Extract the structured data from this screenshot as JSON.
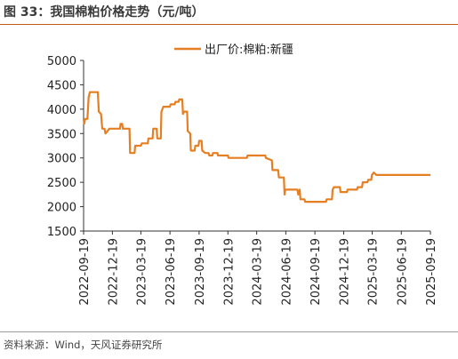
{
  "figure": {
    "title": "图 33：我国棉粕价格走势（元/吨）",
    "source": "资料来源：Wind，天风证券研究所"
  },
  "colors": {
    "series": "#e67e22",
    "axis": "#333333",
    "text": "#222222",
    "accent": "#c05a16"
  },
  "chart_data": {
    "type": "line",
    "title": "",
    "xlabel": "",
    "ylabel": "",
    "ylim": [
      1500,
      5000
    ],
    "yticks": [
      "1500",
      "2000",
      "2500",
      "3000",
      "3500",
      "4000",
      "4500",
      "5000"
    ],
    "xlim": [
      "2022-09-19",
      "2025-09-19"
    ],
    "xticks": [
      "2022-09-19",
      "2022-12-19",
      "2023-03-19",
      "2023-06-19",
      "2023-09-19",
      "2023-12-19",
      "2024-03-19",
      "2024-06-19",
      "2024-09-19",
      "2024-12-19",
      "2025-03-19",
      "2025-06-19",
      "2025-09-19"
    ],
    "grid": false,
    "legend_position": "top-center",
    "series": [
      {
        "name": "出厂价:棉粕:新疆",
        "points": [
          [
            "2022-09-19",
            3800
          ],
          [
            "2022-09-21",
            3700
          ],
          [
            "2022-09-24",
            3800
          ],
          [
            "2022-10-01",
            3800
          ],
          [
            "2022-10-05",
            4250
          ],
          [
            "2022-10-09",
            4350
          ],
          [
            "2022-11-03",
            4350
          ],
          [
            "2022-11-06",
            3950
          ],
          [
            "2022-11-13",
            3900
          ],
          [
            "2022-11-17",
            3600
          ],
          [
            "2022-11-24",
            3600
          ],
          [
            "2022-11-27",
            3500
          ],
          [
            "2022-12-04",
            3550
          ],
          [
            "2022-12-09",
            3600
          ],
          [
            "2023-01-12",
            3600
          ],
          [
            "2023-01-14",
            3700
          ],
          [
            "2023-01-19",
            3700
          ],
          [
            "2023-01-21",
            3600
          ],
          [
            "2023-02-11",
            3600
          ],
          [
            "2023-02-13",
            3100
          ],
          [
            "2023-02-27",
            3100
          ],
          [
            "2023-03-01",
            3250
          ],
          [
            "2023-03-19",
            3250
          ],
          [
            "2023-03-22",
            3300
          ],
          [
            "2023-04-10",
            3300
          ],
          [
            "2023-04-12",
            3400
          ],
          [
            "2023-04-25",
            3400
          ],
          [
            "2023-04-27",
            3600
          ],
          [
            "2023-05-08",
            3600
          ],
          [
            "2023-05-10",
            3400
          ],
          [
            "2023-05-21",
            3400
          ],
          [
            "2023-05-23",
            3950
          ],
          [
            "2023-05-29",
            4050
          ],
          [
            "2023-06-19",
            4050
          ],
          [
            "2023-06-21",
            4100
          ],
          [
            "2023-07-04",
            4100
          ],
          [
            "2023-07-06",
            4150
          ],
          [
            "2023-07-16",
            4150
          ],
          [
            "2023-07-18",
            4200
          ],
          [
            "2023-07-28",
            4200
          ],
          [
            "2023-07-30",
            3900
          ],
          [
            "2023-08-02",
            3950
          ],
          [
            "2023-08-12",
            3950
          ],
          [
            "2023-08-14",
            3550
          ],
          [
            "2023-08-22",
            3500
          ],
          [
            "2023-08-24",
            3150
          ],
          [
            "2023-09-05",
            3150
          ],
          [
            "2023-09-07",
            3250
          ],
          [
            "2023-09-17",
            3250
          ],
          [
            "2023-09-19",
            3350
          ],
          [
            "2023-09-27",
            3350
          ],
          [
            "2023-09-29",
            3150
          ],
          [
            "2023-10-09",
            3100
          ],
          [
            "2023-10-19",
            3100
          ],
          [
            "2023-10-21",
            3050
          ],
          [
            "2023-10-31",
            3050
          ],
          [
            "2023-11-02",
            3100
          ],
          [
            "2023-11-16",
            3100
          ],
          [
            "2023-11-18",
            3050
          ],
          [
            "2023-12-19",
            3050
          ],
          [
            "2023-12-21",
            3000
          ],
          [
            "2024-02-17",
            3000
          ],
          [
            "2024-02-19",
            3050
          ],
          [
            "2024-04-15",
            3050
          ],
          [
            "2024-04-17",
            3000
          ],
          [
            "2024-05-06",
            2950
          ],
          [
            "2024-05-08",
            2750
          ],
          [
            "2024-05-26",
            2750
          ],
          [
            "2024-05-28",
            2600
          ],
          [
            "2024-06-13",
            2600
          ],
          [
            "2024-06-15",
            2250
          ],
          [
            "2024-06-17",
            2350
          ],
          [
            "2024-07-26",
            2350
          ],
          [
            "2024-07-28",
            2250
          ],
          [
            "2024-08-02",
            2350
          ],
          [
            "2024-08-04",
            2150
          ],
          [
            "2024-08-17",
            2150
          ],
          [
            "2024-08-19",
            2100
          ],
          [
            "2024-09-19",
            2100
          ],
          [
            "2024-09-21",
            2100
          ],
          [
            "2024-10-24",
            2100
          ],
          [
            "2024-10-26",
            2150
          ],
          [
            "2024-11-12",
            2150
          ],
          [
            "2024-11-14",
            2350
          ],
          [
            "2024-11-18",
            2400
          ],
          [
            "2024-12-07",
            2400
          ],
          [
            "2024-12-09",
            2300
          ],
          [
            "2024-12-29",
            2300
          ],
          [
            "2024-12-31",
            2350
          ],
          [
            "2025-01-30",
            2350
          ],
          [
            "2025-02-01",
            2400
          ],
          [
            "2025-02-15",
            2400
          ],
          [
            "2025-02-17",
            2500
          ],
          [
            "2025-03-04",
            2500
          ],
          [
            "2025-03-06",
            2550
          ],
          [
            "2025-03-16",
            2550
          ],
          [
            "2025-03-18",
            2650
          ],
          [
            "2025-03-24",
            2700
          ],
          [
            "2025-04-01",
            2650
          ],
          [
            "2025-09-19",
            2650
          ]
        ]
      }
    ]
  }
}
